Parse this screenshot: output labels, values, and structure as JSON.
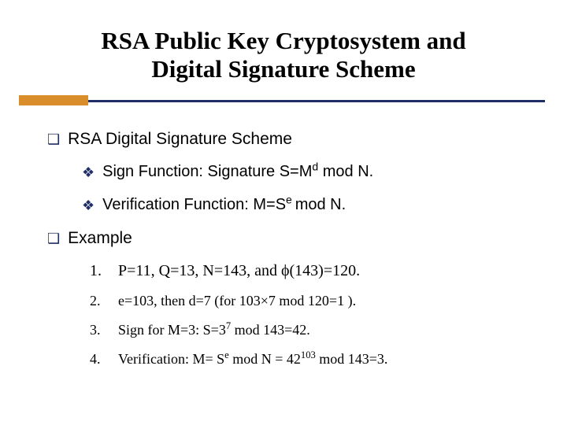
{
  "colors": {
    "navy": "#1f2f66",
    "orange": "#d98e2b",
    "text": "#000000",
    "background": "#ffffff"
  },
  "title": {
    "line1": "RSA Public Key Cryptosystem and",
    "line2": "Digital Signature Scheme",
    "font_family": "Times New Roman",
    "font_size_pt": 31,
    "font_weight": "bold"
  },
  "sections": [
    {
      "bullet_glyph": "❑",
      "text": "RSA Digital Signature Scheme",
      "font_size_pt": 21,
      "children": [
        {
          "bullet_glyph": "❖",
          "prefix": "Sign Function: Signature S=M",
          "sup": "d",
          "suffix": " mod N.",
          "font_size_pt": 20
        },
        {
          "bullet_glyph": "❖",
          "prefix": "Verification Function: M=S",
          "sup": "e ",
          "suffix": "mod N.",
          "font_size_pt": 20
        }
      ]
    },
    {
      "bullet_glyph": "❑",
      "text": "Example",
      "font_size_pt": 21,
      "numbered": [
        {
          "num": "1.",
          "prefix": "P=11, Q=13, N=143, and ",
          "phi": "ϕ",
          "phi_text": "(143)=120.",
          "font_size_pt": 20
        },
        {
          "num": "2.",
          "text": "e=103, then d=7 (for 103×7 mod 120=1 ).",
          "font_size_pt": 18
        },
        {
          "num": "3.",
          "prefix": "Sign for M=3: S=3",
          "sup": "7",
          "suffix": " mod 143=42.",
          "font_size_pt": 18
        },
        {
          "num": "4.",
          "prefix": "Verification: M= S",
          "sup": "e",
          "mid": " mod N = 42",
          "sup2": "103",
          "suffix": " mod 143=3.",
          "font_size_pt": 18
        }
      ]
    }
  ]
}
